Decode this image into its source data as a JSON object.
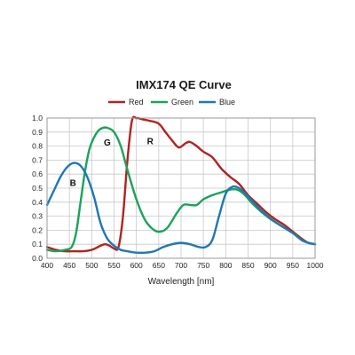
{
  "chart_data": {
    "type": "line",
    "title": "IMX174 QE Curve",
    "xlabel": "Wavelength [nm]",
    "ylabel": "",
    "xlim": [
      400,
      1000
    ],
    "ylim": [
      0,
      1.0
    ],
    "x_ticks": [
      "400",
      "450",
      "500",
      "550",
      "600",
      "650",
      "700",
      "750",
      "800",
      "850",
      "900",
      "950",
      "1000"
    ],
    "y_ticks": [
      "0.0",
      "0.1",
      "0.2",
      "0.3",
      "0.4",
      "0.5",
      "0.6",
      "0.7",
      "0.8",
      "0.9",
      "1.0"
    ],
    "grid": true,
    "legend_position": "top",
    "series": [
      {
        "name": "Red",
        "color": "#b22222",
        "points": [
          [
            400,
            0.08
          ],
          [
            420,
            0.06
          ],
          [
            440,
            0.05
          ],
          [
            460,
            0.05
          ],
          [
            480,
            0.05
          ],
          [
            500,
            0.06
          ],
          [
            520,
            0.09
          ],
          [
            530,
            0.1
          ],
          [
            540,
            0.09
          ],
          [
            550,
            0.07
          ],
          [
            560,
            0.08
          ],
          [
            570,
            0.3
          ],
          [
            580,
            0.7
          ],
          [
            590,
            0.98
          ],
          [
            600,
            1.0
          ],
          [
            615,
            0.99
          ],
          [
            630,
            0.98
          ],
          [
            650,
            0.96
          ],
          [
            665,
            0.9
          ],
          [
            680,
            0.84
          ],
          [
            695,
            0.79
          ],
          [
            710,
            0.82
          ],
          [
            720,
            0.83
          ],
          [
            735,
            0.8
          ],
          [
            750,
            0.76
          ],
          [
            770,
            0.72
          ],
          [
            790,
            0.64
          ],
          [
            810,
            0.58
          ],
          [
            830,
            0.53
          ],
          [
            850,
            0.45
          ],
          [
            870,
            0.39
          ],
          [
            890,
            0.33
          ],
          [
            910,
            0.28
          ],
          [
            930,
            0.24
          ],
          [
            950,
            0.19
          ],
          [
            970,
            0.14
          ],
          [
            985,
            0.11
          ],
          [
            1000,
            0.1
          ]
        ]
      },
      {
        "name": "Green",
        "color": "#1aa35a",
        "points": [
          [
            400,
            0.06
          ],
          [
            420,
            0.05
          ],
          [
            440,
            0.06
          ],
          [
            455,
            0.08
          ],
          [
            465,
            0.18
          ],
          [
            475,
            0.4
          ],
          [
            485,
            0.62
          ],
          [
            495,
            0.78
          ],
          [
            505,
            0.86
          ],
          [
            515,
            0.91
          ],
          [
            525,
            0.93
          ],
          [
            535,
            0.93
          ],
          [
            550,
            0.9
          ],
          [
            565,
            0.8
          ],
          [
            580,
            0.63
          ],
          [
            600,
            0.42
          ],
          [
            620,
            0.27
          ],
          [
            640,
            0.2
          ],
          [
            655,
            0.19
          ],
          [
            670,
            0.22
          ],
          [
            690,
            0.32
          ],
          [
            705,
            0.38
          ],
          [
            720,
            0.38
          ],
          [
            735,
            0.38
          ],
          [
            750,
            0.42
          ],
          [
            770,
            0.45
          ],
          [
            790,
            0.47
          ],
          [
            810,
            0.49
          ],
          [
            825,
            0.49
          ],
          [
            840,
            0.46
          ],
          [
            860,
            0.39
          ],
          [
            880,
            0.33
          ],
          [
            900,
            0.28
          ],
          [
            920,
            0.24
          ],
          [
            940,
            0.2
          ],
          [
            955,
            0.17
          ],
          [
            970,
            0.13
          ],
          [
            985,
            0.11
          ],
          [
            1000,
            0.1
          ]
        ]
      },
      {
        "name": "Blue",
        "color": "#1f77b4",
        "points": [
          [
            400,
            0.38
          ],
          [
            415,
            0.48
          ],
          [
            430,
            0.58
          ],
          [
            445,
            0.65
          ],
          [
            460,
            0.68
          ],
          [
            475,
            0.66
          ],
          [
            490,
            0.58
          ],
          [
            505,
            0.44
          ],
          [
            520,
            0.25
          ],
          [
            535,
            0.14
          ],
          [
            550,
            0.09
          ],
          [
            565,
            0.06
          ],
          [
            580,
            0.05
          ],
          [
            600,
            0.04
          ],
          [
            620,
            0.04
          ],
          [
            640,
            0.05
          ],
          [
            660,
            0.08
          ],
          [
            680,
            0.1
          ],
          [
            700,
            0.11
          ],
          [
            720,
            0.1
          ],
          [
            740,
            0.08
          ],
          [
            755,
            0.08
          ],
          [
            770,
            0.13
          ],
          [
            785,
            0.3
          ],
          [
            800,
            0.46
          ],
          [
            815,
            0.51
          ],
          [
            830,
            0.5
          ],
          [
            850,
            0.44
          ],
          [
            870,
            0.37
          ],
          [
            890,
            0.31
          ],
          [
            910,
            0.26
          ],
          [
            930,
            0.22
          ],
          [
            950,
            0.18
          ],
          [
            970,
            0.13
          ],
          [
            985,
            0.11
          ],
          [
            1000,
            0.1
          ]
        ]
      }
    ],
    "annotations": [
      {
        "text": "B",
        "x": 458,
        "y": 0.54
      },
      {
        "text": "G",
        "x": 535,
        "y": 0.83
      },
      {
        "text": "R",
        "x": 631,
        "y": 0.84
      }
    ]
  }
}
